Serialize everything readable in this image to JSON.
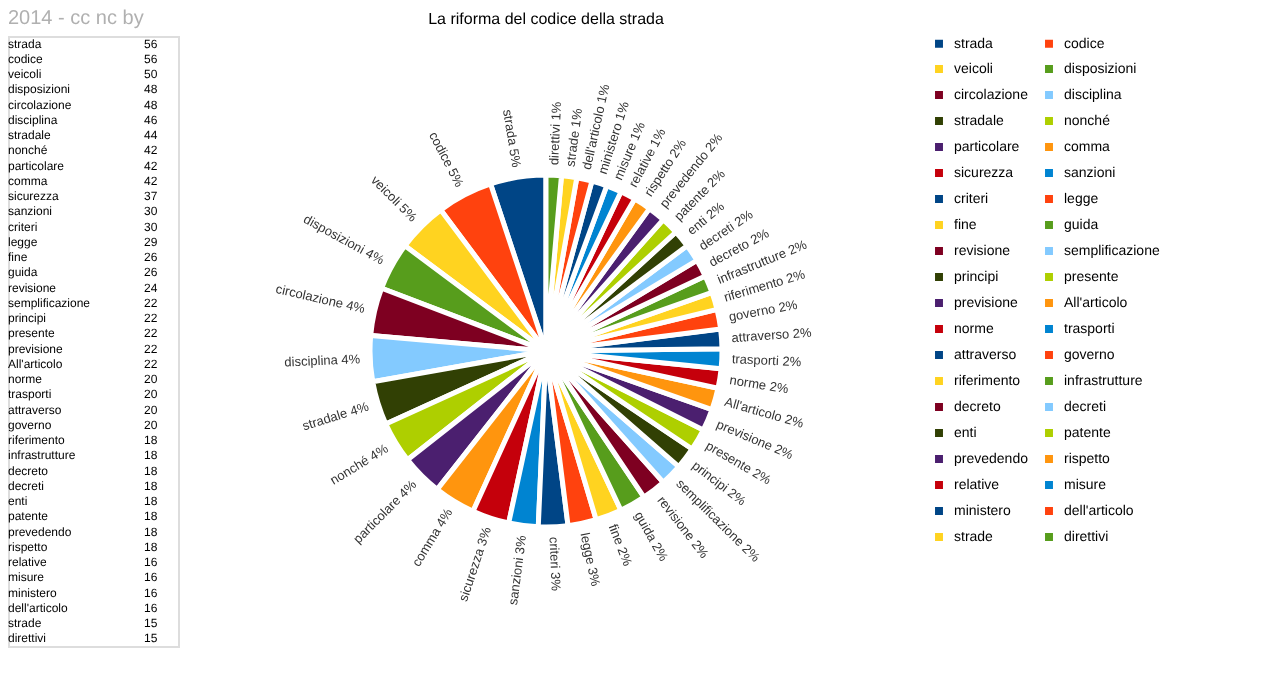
{
  "chart_data": [
    {
      "type": "other",
      "annotations": [
        "2014 - cc nc by"
      ],
      "data_labels": true,
      "categories": [
        "strada",
        "codice",
        "veicoli",
        "disposizioni",
        "circolazione",
        "disciplina",
        "stradale",
        "nonché",
        "particolare",
        "comma",
        "sicurezza",
        "sanzioni",
        "criteri",
        "legge",
        "fine",
        "guida",
        "revisione",
        "semplificazione",
        "principi",
        "presente",
        "previsione",
        "All'articolo",
        "norme",
        "trasporti",
        "attraverso",
        "governo",
        "riferimento",
        "infrastrutture",
        "decreto",
        "decreti",
        "enti",
        "patente",
        "prevedendo",
        "rispetto",
        "relative",
        "misure",
        "ministero",
        "dell'articolo",
        "strade",
        "direttivi"
      ],
      "values": [
        56,
        56,
        50,
        48,
        48,
        46,
        44,
        42,
        42,
        42,
        37,
        30,
        30,
        29,
        26,
        26,
        24,
        22,
        22,
        22,
        22,
        22,
        20,
        20,
        20,
        20,
        18,
        18,
        18,
        18,
        18,
        18,
        18,
        18,
        16,
        16,
        16,
        16,
        15,
        15
      ]
    },
    {
      "type": "pie",
      "title": "La riforma del codice della strada",
      "categories": [
        "strada",
        "codice",
        "veicoli",
        "disposizioni",
        "circolazione",
        "disciplina",
        "stradale",
        "nonché",
        "particolare",
        "comma",
        "sicurezza",
        "sanzioni",
        "criteri",
        "legge",
        "fine",
        "guida",
        "revisione",
        "semplificazione",
        "principi",
        "presente",
        "previsione",
        "All'articolo",
        "norme",
        "trasporti",
        "attraverso",
        "governo",
        "riferimento",
        "infrastrutture",
        "decreto",
        "decreti",
        "enti",
        "patente",
        "prevedendo",
        "rispetto",
        "relative",
        "misure",
        "ministero",
        "dell'articolo",
        "strade",
        "direttivi"
      ],
      "values": [
        5.1,
        5.1,
        4.6,
        4.4,
        4.4,
        4.2,
        4.0,
        3.8,
        3.8,
        3.8,
        3.4,
        2.7,
        2.7,
        2.6,
        2.4,
        2.4,
        2.2,
        2.0,
        2.0,
        2.0,
        2.0,
        2.0,
        1.8,
        1.8,
        1.8,
        1.8,
        1.6,
        1.6,
        1.6,
        1.6,
        1.6,
        1.6,
        1.6,
        1.6,
        1.4,
        1.4,
        1.4,
        1.4,
        1.4,
        1.4
      ],
      "value_labels": [
        "5%",
        "5%",
        "5%",
        "4%",
        "4%",
        "4%",
        "4%",
        "4%",
        "4%",
        "4%",
        "3%",
        "3%",
        "3%",
        "3%",
        "2%",
        "2%",
        "2%",
        "2%",
        "2%",
        "2%",
        "2%",
        "2%",
        "2%",
        "2%",
        "2%",
        "2%",
        "2%",
        "2%",
        "2%",
        "2%",
        "2%",
        "2%",
        "2%",
        "2%",
        "1%",
        "1%",
        "1%",
        "1%",
        "1%",
        "1%"
      ],
      "colors": [
        "#004586",
        "#ff420e",
        "#ffd320",
        "#579d1c",
        "#7e0021",
        "#83caff",
        "#314004",
        "#aecf00",
        "#4b1f6f",
        "#ff950e",
        "#c5000b",
        "#0084d1",
        "#004586",
        "#ff420e",
        "#ffd320",
        "#579d1c",
        "#7e0021",
        "#83caff",
        "#314004",
        "#aecf00",
        "#4b1f6f",
        "#ff950e",
        "#c5000b",
        "#0084d1",
        "#004586",
        "#ff420e",
        "#ffd320",
        "#579d1c",
        "#7e0021",
        "#83caff",
        "#314004",
        "#aecf00",
        "#4b1f6f",
        "#ff950e",
        "#c5000b",
        "#0084d1",
        "#004586",
        "#ff420e",
        "#ffd320",
        "#579d1c"
      ],
      "legend": "right"
    }
  ]
}
